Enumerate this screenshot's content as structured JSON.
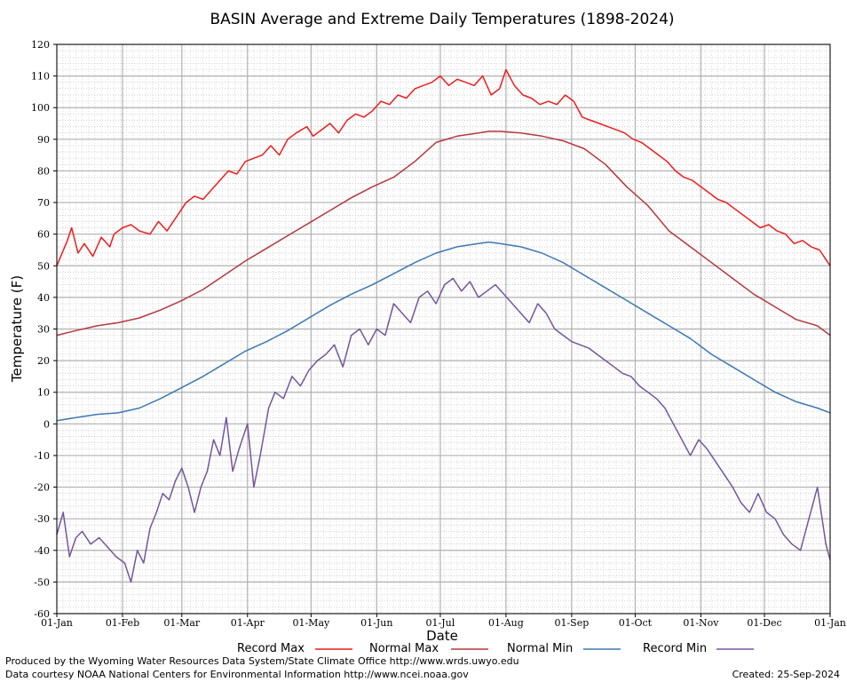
{
  "chart_data": {
    "type": "line",
    "title": "BASIN Average and Extreme Daily Temperatures (1898-2024)",
    "xlabel": "Date",
    "ylabel": "Temperature (F)",
    "ylim": [
      -60,
      120
    ],
    "yticks": [
      -60,
      -50,
      -40,
      -30,
      -20,
      -10,
      0,
      10,
      20,
      30,
      40,
      50,
      60,
      70,
      80,
      90,
      100,
      110,
      120
    ],
    "x_ticks": [
      {
        "label": "01-Jan",
        "day": 1
      },
      {
        "label": "01-Feb",
        "day": 32
      },
      {
        "label": "01-Mar",
        "day": 60
      },
      {
        "label": "01-Apr",
        "day": 91
      },
      {
        "label": "01-May",
        "day": 121
      },
      {
        "label": "01-Jun",
        "day": 152
      },
      {
        "label": "01-Jul",
        "day": 182
      },
      {
        "label": "01-Aug",
        "day": 213
      },
      {
        "label": "01-Sep",
        "day": 244
      },
      {
        "label": "01-Oct",
        "day": 274
      },
      {
        "label": "01-Nov",
        "day": 305
      },
      {
        "label": "01-Dec",
        "day": 335
      },
      {
        "label": "01-Jan",
        "day": 366
      }
    ],
    "x_unit": "day of year",
    "grid": true,
    "legend_position": "bottom",
    "series": [
      {
        "name": "Record Max",
        "color": "#ee1c1c",
        "x": [
          1,
          6,
          8,
          11,
          14,
          18,
          22,
          26,
          28,
          32,
          36,
          40,
          45,
          49,
          53,
          58,
          62,
          66,
          70,
          74,
          78,
          82,
          86,
          90,
          94,
          98,
          102,
          106,
          110,
          114,
          119,
          122,
          126,
          130,
          134,
          138,
          142,
          146,
          150,
          154,
          158,
          162,
          166,
          170,
          174,
          178,
          182,
          186,
          190,
          194,
          198,
          202,
          206,
          210,
          213,
          217,
          221,
          225,
          229,
          233,
          237,
          241,
          245,
          249,
          253,
          257,
          261,
          265,
          269,
          273,
          277,
          281,
          285,
          289,
          293,
          297,
          301,
          305,
          309,
          313,
          317,
          321,
          325,
          329,
          333,
          337,
          341,
          345,
          349,
          353,
          357,
          361,
          366
        ],
        "values": [
          50,
          58,
          62,
          54,
          57,
          53,
          59,
          56,
          60,
          62,
          63,
          61,
          60,
          64,
          61,
          66,
          70,
          72,
          71,
          74,
          77,
          80,
          79,
          83,
          84,
          85,
          88,
          85,
          90,
          92,
          94,
          91,
          93,
          95,
          92,
          96,
          98,
          97,
          99,
          102,
          101,
          104,
          103,
          106,
          107,
          108,
          110,
          107,
          109,
          108,
          107,
          110,
          104,
          106,
          112,
          107,
          104,
          103,
          101,
          102,
          101,
          104,
          102,
          97,
          96,
          95,
          94,
          93,
          92,
          90,
          89,
          87,
          85,
          83,
          80,
          78,
          77,
          75,
          73,
          71,
          70,
          68,
          66,
          64,
          62,
          63,
          61,
          60,
          57,
          58,
          56,
          55,
          50
        ]
      },
      {
        "name": "Normal Max",
        "color": "#b5383e",
        "x": [
          1,
          10,
          20,
          30,
          40,
          50,
          60,
          70,
          80,
          90,
          100,
          110,
          120,
          130,
          140,
          150,
          160,
          170,
          180,
          190,
          200,
          205,
          210,
          220,
          230,
          240,
          250,
          260,
          270,
          280,
          290,
          300,
          310,
          320,
          330,
          340,
          350,
          360,
          366
        ],
        "values": [
          28,
          29.5,
          31,
          32,
          33.5,
          36,
          39,
          42.5,
          47,
          51.5,
          55.5,
          59.5,
          63.5,
          67.5,
          71.5,
          75,
          78,
          83,
          89,
          91,
          92,
          92.5,
          92.5,
          92,
          91,
          89.5,
          87,
          82,
          75,
          69,
          61,
          56,
          51,
          46,
          41,
          37,
          33,
          31,
          28
        ]
      },
      {
        "name": "Normal Min",
        "color": "#3c78b4",
        "x": [
          1,
          10,
          20,
          30,
          40,
          50,
          60,
          70,
          80,
          90,
          100,
          110,
          120,
          130,
          140,
          150,
          160,
          170,
          180,
          190,
          200,
          205,
          210,
          220,
          230,
          240,
          250,
          260,
          270,
          280,
          290,
          300,
          310,
          320,
          330,
          340,
          350,
          360,
          366
        ],
        "values": [
          1,
          2,
          3,
          3.5,
          5,
          8,
          11.5,
          15,
          19,
          23,
          26,
          29.5,
          33.5,
          37.5,
          41,
          44,
          47.5,
          51,
          54,
          56,
          57,
          57.5,
          57,
          56,
          54,
          51,
          47,
          43,
          39,
          35,
          31,
          27,
          22,
          18,
          14,
          10,
          7,
          5,
          3.5
        ]
      },
      {
        "name": "Record Min",
        "color": "#73569c",
        "x": [
          1,
          4,
          7,
          10,
          13,
          17,
          21,
          25,
          29,
          33,
          36,
          39,
          42,
          45,
          48,
          51,
          54,
          57,
          60,
          63,
          66,
          69,
          72,
          75,
          78,
          81,
          84,
          87,
          91,
          94,
          97,
          101,
          104,
          108,
          112,
          116,
          120,
          124,
          128,
          132,
          136,
          140,
          144,
          148,
          152,
          156,
          160,
          164,
          168,
          172,
          176,
          180,
          184,
          188,
          192,
          196,
          200,
          204,
          208,
          212,
          216,
          220,
          224,
          228,
          232,
          236,
          240,
          244,
          248,
          252,
          256,
          260,
          264,
          268,
          272,
          276,
          280,
          284,
          288,
          292,
          296,
          300,
          304,
          308,
          312,
          316,
          320,
          324,
          328,
          332,
          336,
          340,
          344,
          348,
          352,
          356,
          360,
          364,
          366
        ],
        "values": [
          -35,
          -28,
          -42,
          -36,
          -34,
          -38,
          -36,
          -39,
          -42,
          -44,
          -50,
          -40,
          -44,
          -33,
          -28,
          -22,
          -24,
          -18,
          -14,
          -20,
          -28,
          -20,
          -15,
          -5,
          -10,
          2,
          -15,
          -8,
          0,
          -20,
          -10,
          5,
          10,
          8,
          15,
          12,
          17,
          20,
          22,
          25,
          18,
          28,
          30,
          25,
          30,
          28,
          38,
          35,
          32,
          40,
          42,
          38,
          44,
          46,
          42,
          45,
          40,
          42,
          44,
          41,
          38,
          35,
          32,
          38,
          35,
          30,
          28,
          26,
          25,
          24,
          22,
          20,
          18,
          16,
          15,
          12,
          10,
          8,
          5,
          0,
          -5,
          -10,
          -5,
          -8,
          -12,
          -16,
          -20,
          -25,
          -28,
          -22,
          -28,
          -30,
          -35,
          -38,
          -40,
          -30,
          -20,
          -38,
          -43
        ]
      }
    ]
  },
  "legend": [
    {
      "label": "Record Max",
      "color": "#ee1c1c"
    },
    {
      "label": "Normal Max",
      "color": "#b5383e"
    },
    {
      "label": "Normal Min",
      "color": "#3c78b4"
    },
    {
      "label": "Record Min",
      "color": "#73569c"
    }
  ],
  "footer": {
    "produced_by": "Produced by the Wyoming Water Resources Data System/State Climate Office http://www.wrds.uwyo.edu",
    "courtesy": "Data courtesy NOAA National Centers for Environmental Information http://www.ncei.noaa.gov",
    "created": "Created:  25-Sep-2024"
  }
}
